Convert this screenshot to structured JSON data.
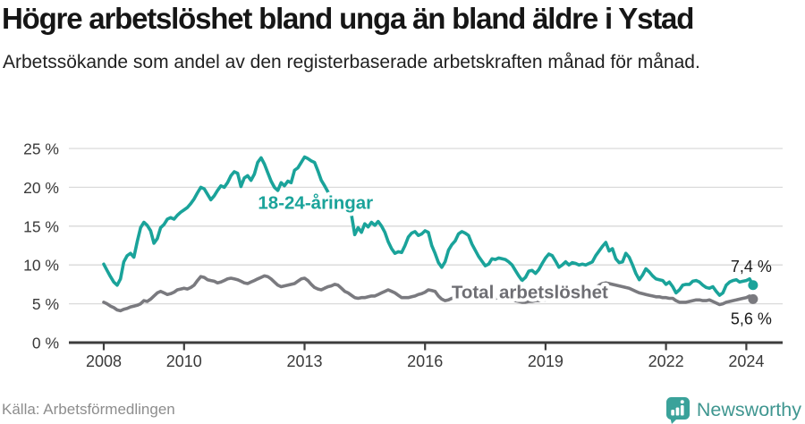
{
  "chart_data": {
    "type": "line",
    "title": "Högre arbetslöshet bland unga än bland äldre i Ystad",
    "subtitle": "Arbetssökande som andel av den registerbaserade arbetskraften månad för månad.",
    "x_axis": {
      "ticks": [
        2008,
        2010,
        2013,
        2016,
        2019,
        2022,
        2024
      ],
      "range_years": [
        2007.15,
        2024.95
      ]
    },
    "y_axis": {
      "tick_values": [
        0,
        5,
        10,
        15,
        20,
        25
      ],
      "tick_suffix": " %",
      "range": [
        0,
        25
      ],
      "grid": true
    },
    "series": [
      {
        "id": "total",
        "name": "Total arbetslöshet",
        "color": "#7a7a7f",
        "start_year": 2008,
        "resolution": "monthly",
        "end_label": "5,6 %",
        "final_value": 5.6,
        "monthly_values": [
          5.2,
          5.0,
          4.7,
          4.5,
          4.2,
          4.1,
          4.3,
          4.4,
          4.6,
          4.7,
          4.8,
          5.0,
          5.4,
          5.3,
          5.6,
          6.0,
          6.4,
          6.6,
          6.4,
          6.2,
          6.3,
          6.5,
          6.8,
          6.9,
          7.0,
          6.9,
          7.1,
          7.4,
          8.0,
          8.5,
          8.4,
          8.1,
          8.0,
          7.9,
          7.7,
          7.8,
          8.0,
          8.2,
          8.3,
          8.2,
          8.1,
          7.9,
          7.7,
          7.6,
          7.8,
          8.0,
          8.2,
          8.4,
          8.6,
          8.5,
          8.2,
          7.8,
          7.4,
          7.2,
          7.3,
          7.4,
          7.5,
          7.6,
          7.9,
          8.2,
          8.3,
          8.0,
          7.5,
          7.1,
          6.9,
          6.8,
          7.0,
          7.2,
          7.3,
          7.5,
          7.4,
          7.0,
          6.6,
          6.4,
          6.1,
          5.8,
          5.7,
          5.8,
          5.8,
          5.9,
          6.0,
          6.0,
          6.2,
          6.4,
          6.6,
          6.8,
          6.6,
          6.4,
          6.1,
          5.8,
          5.8,
          5.8,
          5.9,
          6.0,
          6.2,
          6.3,
          6.5,
          6.8,
          6.7,
          6.6,
          6.0,
          5.6,
          5.4,
          5.5,
          5.7,
          5.8,
          5.9,
          6.0,
          6.1,
          6.0,
          5.9,
          5.8,
          5.7,
          5.6,
          5.6,
          5.6,
          5.7,
          5.7,
          5.8,
          5.8,
          5.7,
          5.6,
          5.5,
          5.4,
          5.3,
          5.2,
          5.2,
          5.3,
          5.3,
          5.4,
          5.4,
          5.5,
          5.5,
          5.6,
          5.6,
          5.7,
          5.7,
          5.8,
          5.8,
          5.9,
          5.9,
          6.0,
          6.0,
          6.1,
          6.2,
          6.4,
          6.7,
          7.1,
          7.4,
          7.6,
          7.7,
          7.6,
          7.5,
          7.4,
          7.3,
          7.2,
          7.1,
          7.0,
          6.8,
          6.6,
          6.4,
          6.3,
          6.2,
          6.1,
          6.0,
          5.9,
          5.9,
          5.8,
          5.8,
          5.7,
          5.7,
          5.4,
          5.2,
          5.2,
          5.2,
          5.3,
          5.4,
          5.5,
          5.5,
          5.4,
          5.4,
          5.5,
          5.3,
          5.1,
          4.9,
          5.0,
          5.2,
          5.3,
          5.4,
          5.5,
          5.6,
          5.7,
          5.8,
          6.0,
          5.6
        ]
      },
      {
        "id": "youth",
        "name": "18-24-åringar",
        "color": "#1aa39a",
        "start_year": 2008,
        "resolution": "monthly",
        "end_label": "7,4 %",
        "final_value": 7.4,
        "monthly_values": [
          10.1,
          9.3,
          8.5,
          7.8,
          7.4,
          8.2,
          10.4,
          11.2,
          11.5,
          11.0,
          13.0,
          14.8,
          15.5,
          15.1,
          14.4,
          12.8,
          13.4,
          14.8,
          15.2,
          15.9,
          16.1,
          15.9,
          16.4,
          16.8,
          17.1,
          17.4,
          17.9,
          18.5,
          19.3,
          20.0,
          19.8,
          19.1,
          18.4,
          18.9,
          19.6,
          20.2,
          20.0,
          20.6,
          21.5,
          22.0,
          21.8,
          20.1,
          21.2,
          21.5,
          20.9,
          21.7,
          23.2,
          23.8,
          23.0,
          21.9,
          20.8,
          20.0,
          19.6,
          20.6,
          20.2,
          20.8,
          20.6,
          22.2,
          22.5,
          23.2,
          23.9,
          23.7,
          23.4,
          23.2,
          22.1,
          20.9,
          20.2,
          19.4,
          18.6,
          18.0,
          17.5,
          17.1,
          16.9,
          16.7,
          16.5,
          13.9,
          14.8,
          14.2,
          15.3,
          14.9,
          15.5,
          15.1,
          15.6,
          15.0,
          14.2,
          13.0,
          12.1,
          11.5,
          11.7,
          11.6,
          12.5,
          13.6,
          14.1,
          14.3,
          13.8,
          14.0,
          14.4,
          14.2,
          12.5,
          11.5,
          10.3,
          9.7,
          10.4,
          11.9,
          12.6,
          13.1,
          14.0,
          14.3,
          14.1,
          13.8,
          12.7,
          11.9,
          11.1,
          10.5,
          9.9,
          10.1,
          10.8,
          10.7,
          10.9,
          10.8,
          10.7,
          10.4,
          10.0,
          9.3,
          8.6,
          8.0,
          8.4,
          9.2,
          9.3,
          8.9,
          9.4,
          10.2,
          10.9,
          11.4,
          11.2,
          10.5,
          9.7,
          10.0,
          10.4,
          10.0,
          10.3,
          10.2,
          10.0,
          10.1,
          10.0,
          10.2,
          10.4,
          11.2,
          11.8,
          12.4,
          12.9,
          11.8,
          12.1,
          10.8,
          10.3,
          10.4,
          11.5,
          11.0,
          10.0,
          8.9,
          8.1,
          8.7,
          9.5,
          9.1,
          8.6,
          8.2,
          8.1,
          8.0,
          7.5,
          7.8,
          7.2,
          6.4,
          6.8,
          7.4,
          7.5,
          7.5,
          7.9,
          8.0,
          7.8,
          7.4,
          7.1,
          7.0,
          7.2,
          6.6,
          6.1,
          6.4,
          7.4,
          7.8,
          8.0,
          8.1,
          7.8,
          7.9,
          8.0,
          8.2,
          7.4
        ]
      }
    ],
    "annotations": [
      {
        "id": "youth",
        "text": "18-24-åringar",
        "color": "#1aa39a",
        "year": 2011.84,
        "pct": 17.25
      },
      {
        "id": "total",
        "text": "Total arbetslöshet",
        "color": "#6e6e73",
        "year": 2016.66,
        "pct": 5.72
      }
    ]
  },
  "footer": {
    "source": "Källa: Arbetsförmedlingen",
    "brand": "Newsworthy",
    "brand_color": "#3f9690",
    "logo_icon": "bar-chart-speech-bubble-icon"
  }
}
